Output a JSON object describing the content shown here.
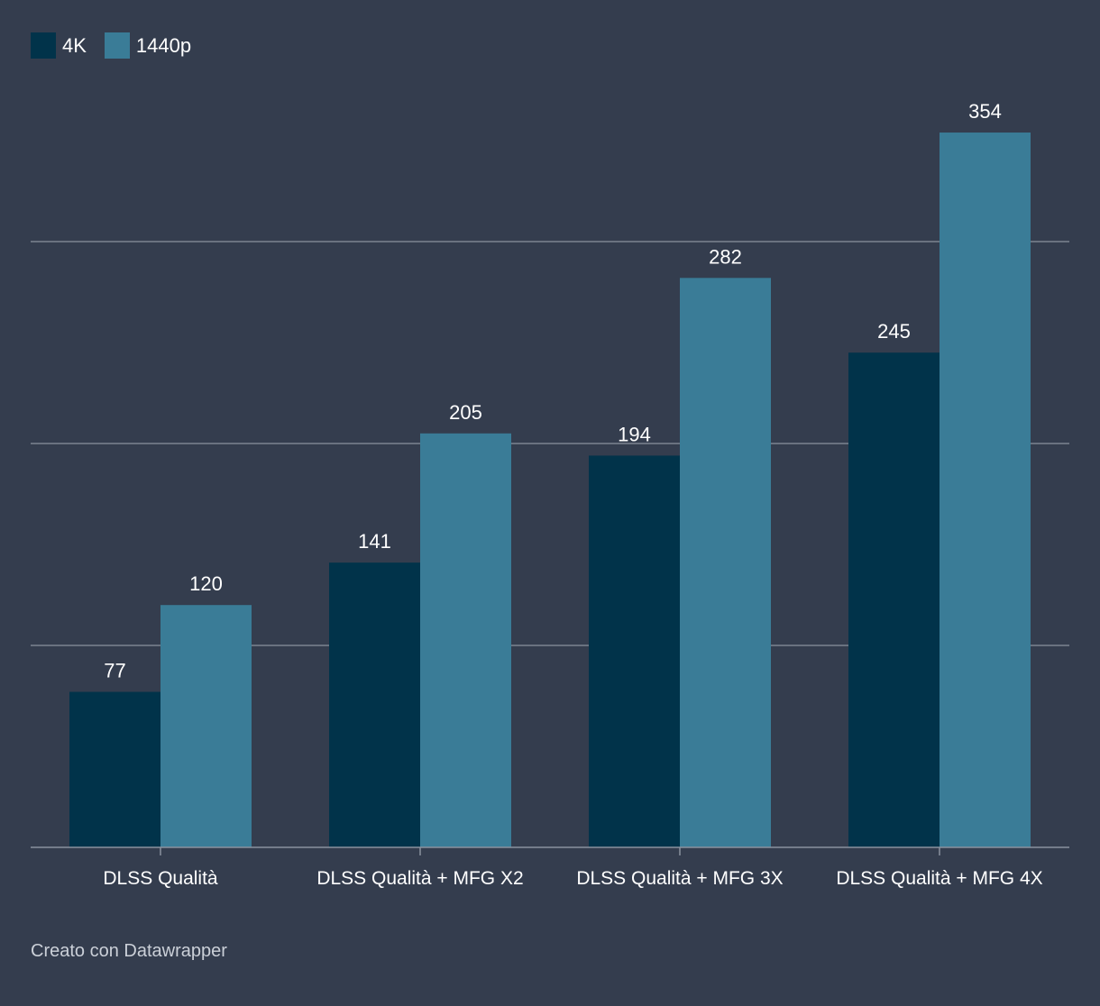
{
  "chart_data": {
    "type": "bar",
    "categories": [
      "DLSS Qualità",
      "DLSS Qualità + MFG X2",
      "DLSS Qualità + MFG 3X",
      "DLSS Qualità + MFG 4X"
    ],
    "series": [
      {
        "name": "4K",
        "values": [
          77,
          141,
          194,
          245
        ],
        "color": "#01334a"
      },
      {
        "name": "1440p",
        "values": [
          120,
          205,
          282,
          354
        ],
        "color": "#3a7c97"
      }
    ],
    "ylim": [
      0,
      400
    ],
    "gridlines": [
      100,
      200,
      300
    ],
    "grid": true,
    "legend_position": "top-left"
  },
  "footer": {
    "credit": "Creato con Datawrapper"
  },
  "colors": {
    "background": "#343d4e",
    "grid": "#8a929e",
    "text": "#ffffff"
  }
}
